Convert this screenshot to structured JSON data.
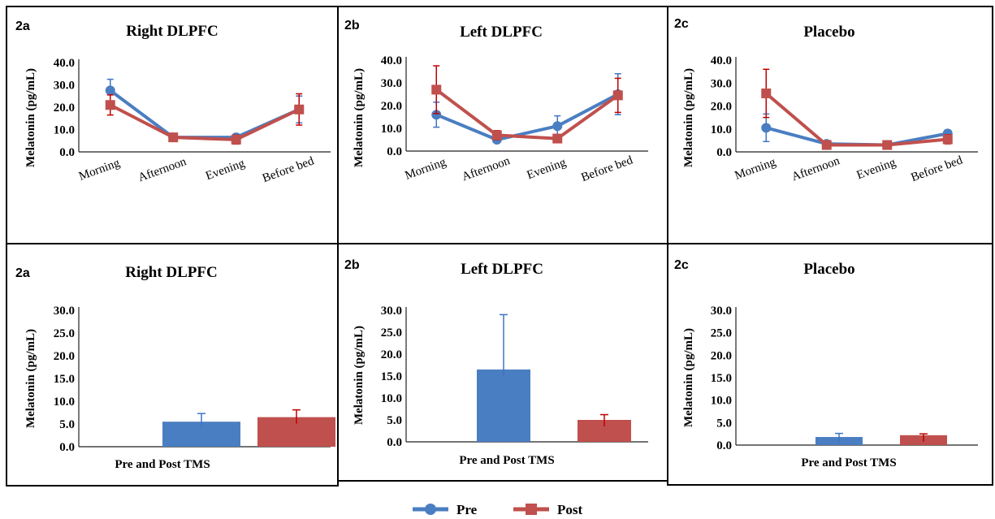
{
  "colors": {
    "pre": "#4a7ec2",
    "post": "#c0504d",
    "pre_error": "#3f74c4",
    "post_error": "#c00000",
    "border": "#000000"
  },
  "legend": [
    {
      "name": "Pre",
      "color": "#4a7ec2",
      "marker": "circle"
    },
    {
      "name": "Post",
      "color": "#c0504d",
      "marker": "square"
    }
  ],
  "chart_data": [
    {
      "type": "line",
      "panel_label": "2a",
      "title": "Right DLPFC",
      "ylabel": "Melatonin (pg/mL)",
      "xlabel": "",
      "categories": [
        "Morning",
        "Afternoon",
        "Evening",
        "Before bed"
      ],
      "ylim": [
        0,
        40
      ],
      "yticks": [
        "40.0",
        "30.0",
        "20.0",
        "10.0",
        "0.0"
      ],
      "series": [
        {
          "name": "Pre",
          "values": [
            27.5,
            6.5,
            6.5,
            19.0
          ],
          "errors": [
            5.0,
            1.5,
            1.5,
            6.0
          ]
        },
        {
          "name": "Post",
          "values": [
            21.0,
            6.5,
            5.5,
            19.0
          ],
          "errors": [
            4.5,
            1.5,
            2.0,
            7.0
          ]
        }
      ]
    },
    {
      "type": "line",
      "panel_label": "2b",
      "title": "Left DLPFC",
      "ylabel": "Melatonin (pg/mL)",
      "xlabel": "",
      "categories": [
        "Morning",
        "Afternoon",
        "Evening",
        "Before bed"
      ],
      "ylim": [
        0,
        40
      ],
      "yticks": [
        "40.0",
        "30.0",
        "20.0",
        "10.0",
        "0.0"
      ],
      "series": [
        {
          "name": "Pre",
          "values": [
            16.0,
            5.0,
            11.0,
            25.0
          ],
          "errors": [
            5.5,
            1.0,
            4.5,
            9.0
          ]
        },
        {
          "name": "Post",
          "values": [
            27.0,
            7.0,
            5.5,
            24.5
          ],
          "errors": [
            10.5,
            2.0,
            1.5,
            7.5
          ]
        }
      ]
    },
    {
      "type": "line",
      "panel_label": "2c",
      "title": "Placebo",
      "ylabel": "Melatonin (pg/mL)",
      "xlabel": "",
      "categories": [
        "Morning",
        "Afternoon",
        "Evening",
        "Before bed"
      ],
      "ylim": [
        0,
        40
      ],
      "yticks": [
        "40.0",
        "30.0",
        "20.0",
        "10.0",
        "0.0"
      ],
      "series": [
        {
          "name": "Pre",
          "values": [
            10.5,
            3.5,
            3.0,
            8.0
          ],
          "errors": [
            6.0,
            1.0,
            1.0,
            1.5
          ]
        },
        {
          "name": "Post",
          "values": [
            25.5,
            3.0,
            3.0,
            5.5
          ],
          "errors": [
            10.5,
            1.0,
            1.0,
            2.0
          ]
        }
      ]
    },
    {
      "type": "bar",
      "panel_label": "2a",
      "title": "Right DLPFC",
      "ylabel": "Melatonin (pg/mL)",
      "xlabel": "Pre and Post TMS",
      "ylim": [
        0,
        30
      ],
      "yticks": [
        "30.0",
        "25.0",
        "20.0",
        "15.0",
        "10.0",
        "5.0",
        "0.0"
      ],
      "series": [
        {
          "name": "Pre",
          "values": [
            5.5
          ],
          "errors": [
            1.8
          ]
        },
        {
          "name": "Post",
          "values": [
            6.5
          ],
          "errors": [
            1.6
          ]
        }
      ]
    },
    {
      "type": "bar",
      "panel_label": "2b",
      "title": "Left DLPFC",
      "ylabel": "Melatonin (pg/mL)",
      "xlabel": "Pre and Post TMS",
      "ylim": [
        0,
        30
      ],
      "yticks": [
        "30.0",
        "25.0",
        "20.0",
        "15.0",
        "10.0",
        "5.0",
        "0.0"
      ],
      "series": [
        {
          "name": "Pre",
          "values": [
            16.5
          ],
          "errors": [
            12.5
          ]
        },
        {
          "name": "Post",
          "values": [
            5.0
          ],
          "errors": [
            1.2
          ]
        }
      ]
    },
    {
      "type": "bar",
      "panel_label": "2c",
      "title": "Placebo",
      "ylabel": "Melatonin (pg/mL)",
      "xlabel": "Pre and Post TMS",
      "ylim": [
        0,
        30
      ],
      "yticks": [
        "30.0",
        "25.0",
        "20.0",
        "15.0",
        "10.0",
        "5.0",
        "0.0"
      ],
      "series": [
        {
          "name": "Pre",
          "values": [
            1.8
          ],
          "errors": [
            0.8
          ]
        },
        {
          "name": "Post",
          "values": [
            2.2
          ],
          "errors": [
            0.3
          ]
        }
      ]
    }
  ]
}
